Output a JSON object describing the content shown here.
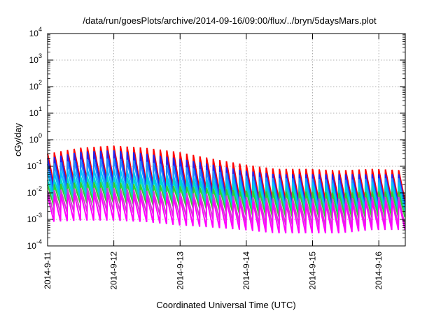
{
  "chart_data": {
    "type": "line",
    "title": "/data/run/goesPlots/archive/2014-09-16/09:00/flux/../bryn/5daysMars.plot",
    "xlabel": "Coordinated Universal Time (UTC)",
    "ylabel": "cGy/day",
    "yscale": "log",
    "ylim_exp": [
      -4,
      4
    ],
    "yticks": [
      {
        "base": "10",
        "exp": "4"
      },
      {
        "base": "10",
        "exp": "3"
      },
      {
        "base": "10",
        "exp": "2"
      },
      {
        "base": "10",
        "exp": "1"
      },
      {
        "base": "10",
        "exp": "0"
      },
      {
        "base": "10",
        "exp": "-1"
      },
      {
        "base": "10",
        "exp": "-2"
      },
      {
        "base": "10",
        "exp": "-3"
      },
      {
        "base": "10",
        "exp": "-4"
      }
    ],
    "xticks": [
      "2014-9-11",
      "2014-9-12",
      "2014-9-13",
      "2014-9-14",
      "2014-9-15",
      "2014-9-16"
    ],
    "xlim_days": [
      0,
      5.4
    ],
    "grid": true,
    "sawtooth_period_days": 0.1,
    "series": [
      {
        "color": "#ff0000",
        "peaks": [
          0.3,
          0.5,
          0.6,
          0.5,
          0.35,
          0.2,
          0.12,
          0.08,
          0.08,
          0.07,
          0.08,
          0.07
        ],
        "troughs": [
          0.02,
          0.03,
          0.03,
          0.02,
          0.015,
          0.012,
          0.006,
          0.005,
          0.005,
          0.005,
          0.005,
          0.005
        ]
      },
      {
        "color": "#2222ee",
        "peaks": [
          0.2,
          0.35,
          0.4,
          0.3,
          0.2,
          0.12,
          0.07,
          0.05,
          0.05,
          0.05,
          0.05,
          0.05
        ],
        "troughs": [
          0.012,
          0.02,
          0.02,
          0.015,
          0.01,
          0.008,
          0.004,
          0.0035,
          0.0035,
          0.003,
          0.0035,
          0.0035
        ]
      },
      {
        "color": "#1e90ff",
        "peaks": [
          0.12,
          0.18,
          0.2,
          0.15,
          0.1,
          0.07,
          0.045,
          0.035,
          0.035,
          0.03,
          0.035,
          0.035
        ],
        "troughs": [
          0.008,
          0.012,
          0.012,
          0.01,
          0.007,
          0.005,
          0.003,
          0.0025,
          0.0025,
          0.002,
          0.0025,
          0.0025
        ]
      },
      {
        "color": "#00bfff",
        "peaks": [
          0.06,
          0.08,
          0.08,
          0.06,
          0.045,
          0.035,
          0.03,
          0.025,
          0.025,
          0.022,
          0.025,
          0.025
        ],
        "troughs": [
          0.006,
          0.008,
          0.008,
          0.006,
          0.005,
          0.004,
          0.0025,
          0.002,
          0.002,
          0.0018,
          0.002,
          0.002
        ]
      },
      {
        "color": "#00d8c8",
        "peaks": [
          0.03,
          0.04,
          0.04,
          0.035,
          0.03,
          0.025,
          0.02,
          0.018,
          0.018,
          0.016,
          0.018,
          0.018
        ],
        "troughs": [
          0.005,
          0.006,
          0.006,
          0.005,
          0.004,
          0.0035,
          0.002,
          0.0018,
          0.0018,
          0.0015,
          0.0018,
          0.0018
        ]
      },
      {
        "color": "#33cc33",
        "peaks": [
          0.02,
          0.025,
          0.025,
          0.02,
          0.018,
          0.015,
          0.012,
          0.011,
          0.011,
          0.01,
          0.011,
          0.011
        ],
        "troughs": [
          0.003,
          0.004,
          0.004,
          0.0035,
          0.003,
          0.0025,
          0.0015,
          0.0012,
          0.0012,
          0.001,
          0.0012,
          0.0012
        ]
      },
      {
        "color": "#cc44cc",
        "peaks": [
          0.012,
          0.015,
          0.015,
          0.012,
          0.01,
          0.009,
          0.007,
          0.006,
          0.006,
          0.006,
          0.007,
          0.007
        ],
        "troughs": [
          0.0015,
          0.002,
          0.002,
          0.0016,
          0.0013,
          0.0011,
          0.0007,
          0.0006,
          0.0006,
          0.0005,
          0.0006,
          0.0006
        ]
      },
      {
        "color": "#ff00ff",
        "peaks": [
          0.008,
          0.01,
          0.01,
          0.008,
          0.007,
          0.006,
          0.005,
          0.004,
          0.004,
          0.004,
          0.005,
          0.005
        ],
        "troughs": [
          0.0008,
          0.0009,
          0.0009,
          0.0008,
          0.0006,
          0.0005,
          0.0004,
          0.0003,
          0.0003,
          0.0003,
          0.0004,
          0.0004
        ]
      }
    ]
  }
}
